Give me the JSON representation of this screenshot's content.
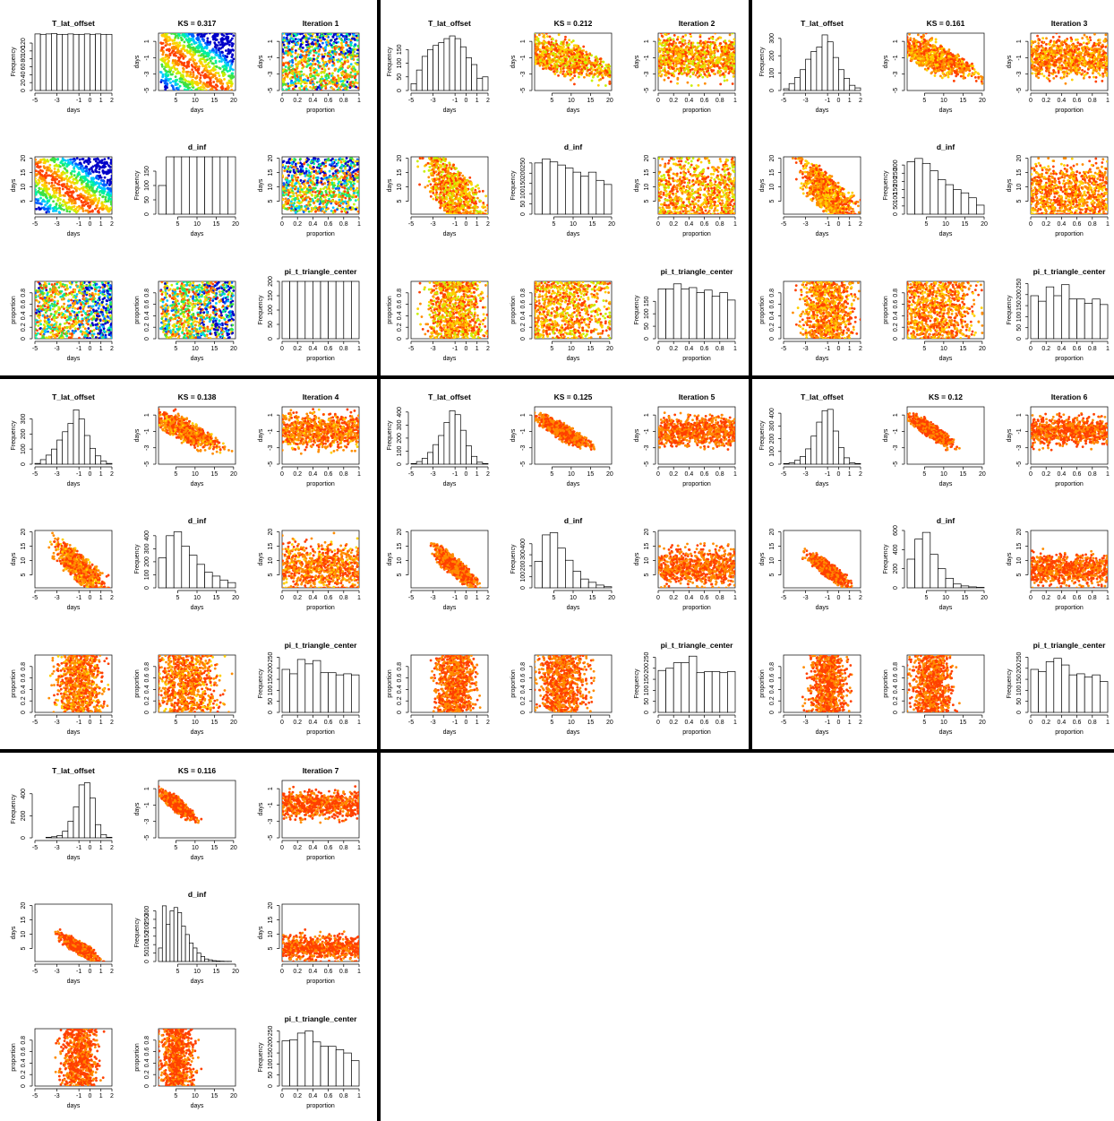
{
  "figure": {
    "background": "#ffffff",
    "separator_color": "#000000",
    "heat_colors": [
      "#0000c8",
      "#0060ff",
      "#00c8ff",
      "#00f0a0",
      "#40e040",
      "#c8f000",
      "#ffd000",
      "#ff8c00",
      "#ff4000"
    ]
  },
  "labels": {
    "days": "days",
    "proportion": "proportion",
    "frequency": "Frequency"
  },
  "chart_data": [
    {
      "type": "scatter_matrix",
      "iteration_title": "Iteration  1",
      "ks_title": "KS =  0.317",
      "hist_titles": [
        "T_lat_offset",
        "d_inf",
        "pi_t_triangle_center"
      ],
      "t_lat_hist": {
        "breaks": [
          -5,
          -4.5,
          -4,
          -3.5,
          -3,
          -2.5,
          -2,
          -1.5,
          -1,
          -0.5,
          0,
          0.5,
          1,
          1.5,
          2
        ],
        "counts": [
          143,
          142,
          143,
          144,
          142,
          142,
          143,
          142,
          142,
          143,
          142,
          143,
          142,
          142
        ],
        "ylim": [
          0,
          145
        ],
        "yticks": [
          0,
          20,
          40,
          60,
          80,
          100,
          120
        ]
      },
      "d_inf_hist": {
        "breaks": [
          0,
          2,
          4,
          6,
          8,
          10,
          12,
          14,
          16,
          18,
          20
        ],
        "counts": [
          100,
          200,
          200,
          200,
          200,
          200,
          200,
          200,
          200,
          200
        ],
        "ylim": [
          0,
          200
        ],
        "yticks": [
          0,
          50,
          100,
          150
        ]
      },
      "pi_hist": {
        "breaks": [
          0,
          0.1,
          0.2,
          0.3,
          0.4,
          0.5,
          0.6,
          0.7,
          0.8,
          0.9,
          1
        ],
        "counts": [
          200,
          200,
          200,
          200,
          200,
          200,
          200,
          200,
          200,
          200
        ],
        "ylim": [
          0,
          200
        ],
        "yticks": [
          0,
          50,
          100,
          150,
          200
        ]
      },
      "scatter": {
        "t_lat_range": [
          -5,
          2
        ],
        "d_inf_range": [
          1,
          20
        ],
        "d_inf_ceiling": 20,
        "pi_range": [
          0,
          1
        ],
        "tightness": 0,
        "n_points": 900,
        "color_bias": 0
      }
    },
    {
      "type": "scatter_matrix",
      "iteration_title": "Iteration  2",
      "ks_title": "KS =  0.212",
      "hist_titles": [
        "T_lat_offset",
        "d_inf",
        "pi_t_triangle_center"
      ],
      "t_lat_hist": {
        "breaks": [
          -5,
          -4.5,
          -4,
          -3.5,
          -3,
          -2.5,
          -2,
          -1.5,
          -1,
          -0.5,
          0,
          0.5,
          1,
          1.5,
          2
        ],
        "counts": [
          25,
          75,
          125,
          150,
          165,
          175,
          190,
          200,
          190,
          160,
          120,
          95,
          45,
          50
        ],
        "ylim": [
          0,
          210
        ],
        "yticks": [
          0,
          50,
          100,
          150
        ]
      },
      "d_inf_hist": {
        "breaks": [
          0,
          2,
          4,
          6,
          8,
          10,
          12,
          14,
          16,
          18,
          20
        ],
        "counts": [
          250,
          270,
          255,
          240,
          225,
          205,
          185,
          205,
          165,
          145
        ],
        "ylim": [
          0,
          280
        ],
        "yticks": [
          0,
          50,
          100,
          150,
          200,
          250
        ]
      },
      "pi_hist": {
        "breaks": [
          0,
          0.1,
          0.2,
          0.3,
          0.4,
          0.5,
          0.6,
          0.7,
          0.8,
          0.9,
          1
        ],
        "counts": [
          200,
          200,
          220,
          200,
          205,
          185,
          195,
          170,
          185,
          155
        ],
        "ylim": [
          0,
          230
        ],
        "yticks": [
          0,
          50,
          100,
          150
        ]
      },
      "scatter": {
        "t_lat_range": [
          -5,
          2
        ],
        "d_inf_range": [
          1,
          20
        ],
        "d_inf_ceiling": 20,
        "pi_range": [
          0,
          1
        ],
        "tightness": 0.3,
        "n_points": 900,
        "color_bias": 0.3
      }
    },
    {
      "type": "scatter_matrix",
      "iteration_title": "Iteration  3",
      "ks_title": "KS =  0.161",
      "hist_titles": [
        "T_lat_offset",
        "d_inf",
        "pi_t_triangle_center"
      ],
      "t_lat_hist": {
        "breaks": [
          -5,
          -4.5,
          -4,
          -3.5,
          -3,
          -2.5,
          -2,
          -1.5,
          -1,
          -0.5,
          0,
          0.5,
          1,
          1.5,
          2
        ],
        "counts": [
          10,
          40,
          75,
          120,
          180,
          225,
          250,
          320,
          280,
          190,
          120,
          70,
          30,
          15
        ],
        "ylim": [
          0,
          330
        ],
        "yticks": [
          0,
          100,
          200,
          300
        ]
      },
      "d_inf_hist": {
        "breaks": [
          0,
          2,
          4,
          6,
          8,
          10,
          12,
          14,
          16,
          18,
          20
        ],
        "counts": [
          320,
          340,
          310,
          265,
          210,
          180,
          150,
          130,
          100,
          55
        ],
        "ylim": [
          0,
          350
        ],
        "yticks": [
          0,
          50,
          100,
          150,
          200,
          250,
          300
        ]
      },
      "pi_hist": {
        "breaks": [
          0,
          0.1,
          0.2,
          0.3,
          0.4,
          0.5,
          0.6,
          0.7,
          0.8,
          0.9,
          1
        ],
        "counts": [
          195,
          170,
          235,
          195,
          245,
          180,
          180,
          160,
          180,
          155
        ],
        "ylim": [
          0,
          260
        ],
        "yticks": [
          0,
          50,
          100,
          150,
          200,
          250
        ]
      },
      "scatter": {
        "t_lat_range": [
          -5,
          2
        ],
        "d_inf_range": [
          1,
          20
        ],
        "d_inf_ceiling": 20,
        "pi_range": [
          0,
          1
        ],
        "tightness": 0.5,
        "n_points": 900,
        "color_bias": 0.5
      }
    },
    {
      "type": "scatter_matrix",
      "iteration_title": "Iteration  4",
      "ks_title": "KS =  0.138",
      "hist_titles": [
        "T_lat_offset",
        "d_inf",
        "pi_t_triangle_center"
      ],
      "t_lat_hist": {
        "breaks": [
          -5,
          -4.5,
          -4,
          -3.5,
          -3,
          -2.5,
          -2,
          -1.5,
          -1,
          -0.5,
          0,
          0.5,
          1,
          1.5,
          2
        ],
        "counts": [
          5,
          30,
          60,
          100,
          160,
          215,
          270,
          360,
          300,
          190,
          105,
          55,
          20,
          5
        ],
        "ylim": [
          0,
          380
        ],
        "yticks": [
          0,
          100,
          200,
          300
        ]
      },
      "d_inf_hist": {
        "breaks": [
          0,
          2,
          4,
          6,
          8,
          10,
          12,
          14,
          16,
          18,
          20
        ],
        "counts": [
          230,
          400,
          430,
          320,
          250,
          180,
          120,
          90,
          60,
          40
        ],
        "ylim": [
          0,
          440
        ],
        "yticks": [
          0,
          100,
          200,
          300,
          400
        ]
      },
      "pi_hist": {
        "breaks": [
          0,
          0.1,
          0.2,
          0.3,
          0.4,
          0.5,
          0.6,
          0.7,
          0.8,
          0.9,
          1
        ],
        "counts": [
          195,
          175,
          240,
          220,
          235,
          180,
          180,
          170,
          175,
          170
        ],
        "ylim": [
          0,
          260
        ],
        "yticks": [
          0,
          50,
          100,
          150,
          200,
          250
        ]
      },
      "scatter": {
        "t_lat_range": [
          -5,
          2
        ],
        "d_inf_range": [
          1,
          20
        ],
        "d_inf_ceiling": 20,
        "pi_range": [
          0,
          1
        ],
        "tightness": 0.65,
        "n_points": 800,
        "color_bias": 0.7
      }
    },
    {
      "type": "scatter_matrix",
      "iteration_title": "Iteration  5",
      "ks_title": "KS =  0.125",
      "hist_titles": [
        "T_lat_offset",
        "d_inf",
        "pi_t_triangle_center"
      ],
      "t_lat_hist": {
        "breaks": [
          -5,
          -4.5,
          -4,
          -3.5,
          -3,
          -2.5,
          -2,
          -1.5,
          -1,
          -0.5,
          0,
          0.5,
          1,
          1.5,
          2
        ],
        "counts": [
          5,
          20,
          45,
          90,
          150,
          220,
          320,
          410,
          380,
          260,
          140,
          60,
          15,
          5
        ],
        "ylim": [
          0,
          440
        ],
        "yticks": [
          0,
          100,
          200,
          300,
          400
        ]
      },
      "d_inf_hist": {
        "breaks": [
          0,
          2,
          4,
          6,
          8,
          10,
          12,
          14,
          16,
          18,
          20
        ],
        "counts": [
          240,
          480,
          500,
          360,
          250,
          150,
          80,
          50,
          25,
          10
        ],
        "ylim": [
          0,
          520
        ],
        "yticks": [
          0,
          100,
          200,
          300,
          400
        ]
      },
      "pi_hist": {
        "breaks": [
          0,
          0.1,
          0.2,
          0.3,
          0.4,
          0.5,
          0.6,
          0.7,
          0.8,
          0.9,
          1
        ],
        "counts": [
          190,
          200,
          225,
          225,
          255,
          180,
          185,
          185,
          180,
          185
        ],
        "ylim": [
          0,
          260
        ],
        "yticks": [
          0,
          50,
          100,
          150,
          200,
          250
        ]
      },
      "scatter": {
        "t_lat_range": [
          -5,
          2
        ],
        "d_inf_range": [
          1,
          20
        ],
        "d_inf_ceiling": 20,
        "pi_range": [
          0,
          1
        ],
        "tightness": 0.78,
        "n_points": 800,
        "color_bias": 0.82
      }
    },
    {
      "type": "scatter_matrix",
      "iteration_title": "Iteration  6",
      "ks_title": "KS =  0.12",
      "hist_titles": [
        "T_lat_offset",
        "d_inf",
        "pi_t_triangle_center"
      ],
      "t_lat_hist": {
        "breaks": [
          -5,
          -4.5,
          -4,
          -3.5,
          -3,
          -2.5,
          -2,
          -1.5,
          -1,
          -0.5,
          0,
          0.5,
          1,
          1.5,
          2
        ],
        "counts": [
          5,
          10,
          30,
          60,
          120,
          220,
          330,
          420,
          430,
          260,
          130,
          50,
          10,
          5
        ],
        "ylim": [
          0,
          450
        ],
        "yticks": [
          0,
          100,
          200,
          300,
          400
        ]
      },
      "d_inf_hist": {
        "breaks": [
          0,
          2,
          4,
          6,
          8,
          10,
          12,
          14,
          16,
          18,
          20
        ],
        "counts": [
          300,
          510,
          580,
          350,
          200,
          100,
          40,
          20,
          10,
          5
        ],
        "ylim": [
          0,
          600
        ],
        "yticks": [
          0,
          200,
          400,
          600
        ]
      },
      "pi_hist": {
        "breaks": [
          0,
          0.1,
          0.2,
          0.3,
          0.4,
          0.5,
          0.6,
          0.7,
          0.8,
          0.9,
          1
        ],
        "counts": [
          195,
          185,
          230,
          245,
          215,
          170,
          175,
          160,
          170,
          140
        ],
        "ylim": [
          0,
          260
        ],
        "yticks": [
          0,
          50,
          100,
          150,
          200,
          250
        ]
      },
      "scatter": {
        "t_lat_range": [
          -5,
          2
        ],
        "d_inf_range": [
          1,
          18
        ],
        "d_inf_ceiling": 18,
        "pi_range": [
          0,
          1
        ],
        "tightness": 0.86,
        "n_points": 750,
        "color_bias": 0.9
      }
    },
    {
      "type": "scatter_matrix",
      "iteration_title": "Iteration  7",
      "ks_title": "KS =  0.116",
      "hist_titles": [
        "T_lat_offset",
        "d_inf",
        "pi_t_triangle_center"
      ],
      "t_lat_hist": {
        "breaks": [
          -5,
          -4.5,
          -4,
          -3.5,
          -3,
          -2.5,
          -2,
          -1.5,
          -1,
          -0.5,
          0,
          0.5,
          1,
          1.5,
          2
        ],
        "counts": [
          0,
          0,
          5,
          10,
          20,
          60,
          150,
          280,
          480,
          500,
          360,
          120,
          30,
          5
        ],
        "ylim": [
          0,
          520
        ],
        "yticks": [
          0,
          200,
          400
        ]
      },
      "d_inf_hist": {
        "breaks": [
          0,
          1,
          2,
          3,
          4,
          5,
          6,
          7,
          8,
          9,
          10,
          11,
          12,
          13,
          14,
          15,
          16,
          17,
          18,
          19,
          20
        ],
        "counts": [
          80,
          330,
          220,
          300,
          320,
          290,
          210,
          160,
          110,
          80,
          50,
          30,
          15,
          10,
          5,
          3,
          2,
          1,
          1,
          0
        ],
        "ylim": [
          0,
          340
        ],
        "yticks": [
          0,
          50,
          100,
          150,
          200,
          250,
          300
        ]
      },
      "pi_hist": {
        "breaks": [
          0,
          0.1,
          0.2,
          0.3,
          0.4,
          0.5,
          0.6,
          0.7,
          0.8,
          0.9,
          1
        ],
        "counts": [
          205,
          210,
          240,
          250,
          200,
          180,
          180,
          165,
          150,
          115
        ],
        "ylim": [
          0,
          260
        ],
        "yticks": [
          0,
          50,
          100,
          150,
          200,
          250
        ]
      },
      "scatter": {
        "t_lat_range": [
          -4,
          1.5
        ],
        "d_inf_range": [
          1,
          14
        ],
        "d_inf_ceiling": 14,
        "pi_range": [
          0,
          1
        ],
        "tightness": 0.9,
        "n_points": 700,
        "color_bias": 0.95
      }
    }
  ]
}
